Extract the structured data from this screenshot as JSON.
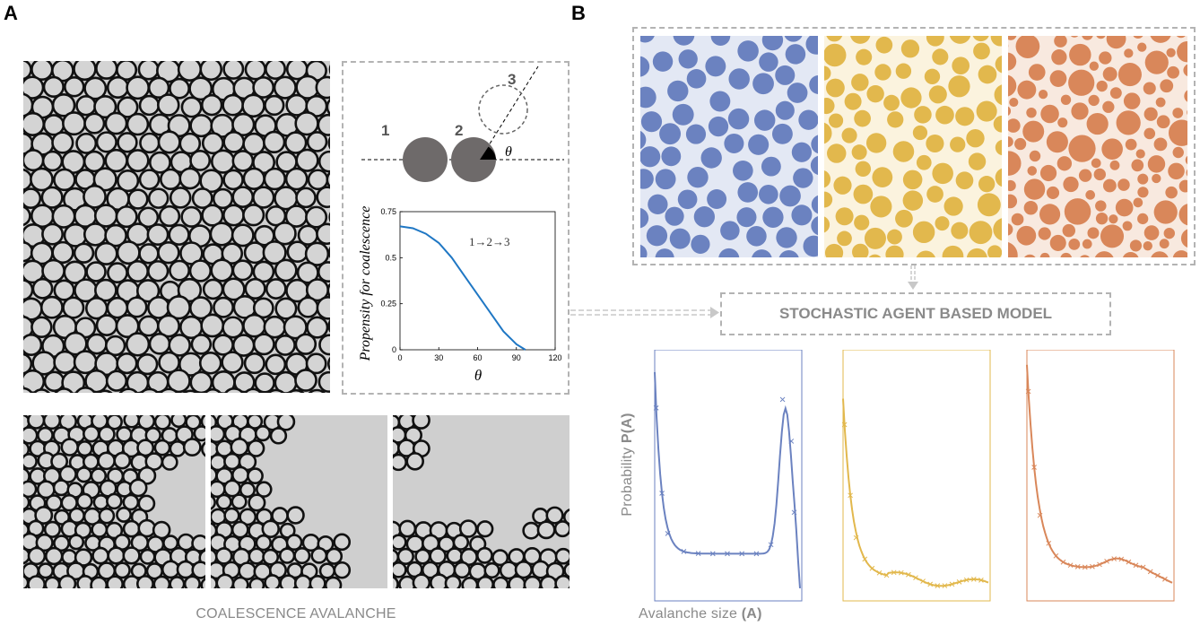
{
  "panel_a": {
    "letter": "A",
    "caption": "COALESCENCE AVALANCHE",
    "schematic": {
      "labels": [
        "1",
        "2",
        "3"
      ],
      "angle_symbol": "θ"
    },
    "inset_chart": {
      "ylabel": "Propensity for coalescence",
      "xlabel": "θ",
      "annotation": "1→2→3",
      "xticks": [
        "0",
        "30",
        "60",
        "90",
        "120"
      ],
      "yticks": [
        "0",
        "0.25",
        "0.5",
        "0.75"
      ]
    }
  },
  "panel_b": {
    "letter": "B",
    "model_label": "STOCHASTIC AGENT BASED MODEL",
    "ylabel_prefix": "Probability ",
    "ylabel_bold": "P(A)",
    "xlabel_prefix": "Avalanche size ",
    "xlabel_bold": "(A)",
    "colors": {
      "blue": "#6b82c0",
      "yellow": "#e2b84d",
      "orange": "#d9875a"
    }
  },
  "chart_data": [
    {
      "type": "line",
      "ylabel": "Propensity for coalescence",
      "xlabel": "θ",
      "xlim": [
        0,
        120
      ],
      "ylim": [
        0,
        0.75
      ],
      "x": [
        0,
        10,
        20,
        30,
        40,
        50,
        60,
        70,
        80,
        90,
        97
      ],
      "series": [
        {
          "name": "1→2→3",
          "values": [
            0.67,
            0.66,
            0.63,
            0.58,
            0.5,
            0.4,
            0.3,
            0.2,
            0.1,
            0.03,
            0.0
          ]
        }
      ]
    }
  ]
}
